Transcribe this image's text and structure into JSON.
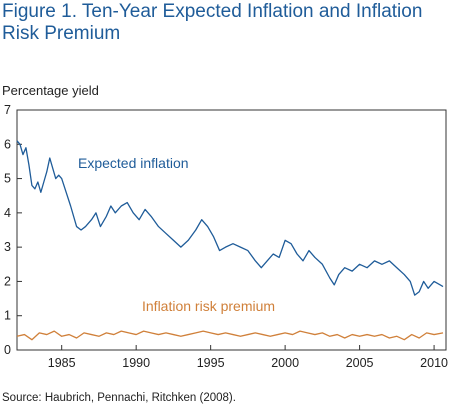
{
  "chart_data": {
    "type": "line",
    "title": "Figure 1. Ten-Year Expected Inflation and Inflation Risk Premium",
    "ylabel": "Percentage yield",
    "xlabel": "",
    "source": "Source: Haubrich, Pennachi, Ritchken (2008).",
    "xlim": [
      1982,
      2010.8
    ],
    "ylim": [
      0,
      7
    ],
    "x_ticks": [
      1985,
      1990,
      1995,
      2000,
      2005,
      2010
    ],
    "y_ticks": [
      0,
      1,
      2,
      3,
      4,
      5,
      6,
      7
    ],
    "grid": false,
    "series": [
      {
        "name": "Expected inflation",
        "color": "#1f5c99",
        "x": [
          1982.0,
          1982.2,
          1982.4,
          1982.6,
          1982.8,
          1983.0,
          1983.2,
          1983.4,
          1983.6,
          1983.8,
          1984.0,
          1984.2,
          1984.4,
          1984.6,
          1984.8,
          1985.0,
          1985.3,
          1985.6,
          1986.0,
          1986.3,
          1986.6,
          1987.0,
          1987.3,
          1987.6,
          1988.0,
          1988.3,
          1988.6,
          1989.0,
          1989.4,
          1989.8,
          1990.2,
          1990.6,
          1991.0,
          1991.5,
          1992.0,
          1992.5,
          1993.0,
          1993.5,
          1994.0,
          1994.4,
          1994.8,
          1995.2,
          1995.6,
          1996.0,
          1996.5,
          1997.0,
          1997.5,
          1998.0,
          1998.4,
          1998.8,
          1999.2,
          1999.6,
          2000.0,
          2000.4,
          2000.8,
          2001.2,
          2001.6,
          2002.0,
          2002.5,
          2003.0,
          2003.3,
          2003.6,
          2004.0,
          2004.5,
          2005.0,
          2005.5,
          2006.0,
          2006.5,
          2007.0,
          2007.5,
          2008.0,
          2008.4,
          2008.7,
          2009.0,
          2009.3,
          2009.6,
          2010.0,
          2010.4,
          2010.6
        ],
        "values": [
          6.1,
          6.0,
          5.7,
          5.9,
          5.4,
          4.8,
          4.7,
          4.9,
          4.6,
          4.9,
          5.2,
          5.6,
          5.3,
          5.0,
          5.1,
          5.0,
          4.6,
          4.2,
          3.6,
          3.5,
          3.6,
          3.8,
          4.0,
          3.6,
          3.9,
          4.2,
          4.0,
          4.2,
          4.3,
          4.0,
          3.8,
          4.1,
          3.9,
          3.6,
          3.4,
          3.2,
          3.0,
          3.2,
          3.5,
          3.8,
          3.6,
          3.3,
          2.9,
          3.0,
          3.1,
          3.0,
          2.9,
          2.6,
          2.4,
          2.6,
          2.8,
          2.7,
          3.2,
          3.1,
          2.8,
          2.6,
          2.9,
          2.7,
          2.5,
          2.1,
          1.9,
          2.2,
          2.4,
          2.3,
          2.5,
          2.4,
          2.6,
          2.5,
          2.6,
          2.4,
          2.2,
          2.0,
          1.6,
          1.7,
          2.0,
          1.8,
          2.0,
          1.9,
          1.85
        ]
      },
      {
        "name": "Inflation risk premium",
        "color": "#d0803a",
        "x": [
          1982.0,
          1982.5,
          1983.0,
          1983.5,
          1984.0,
          1984.5,
          1985.0,
          1985.5,
          1986.0,
          1986.5,
          1987.0,
          1987.5,
          1988.0,
          1988.5,
          1989.0,
          1989.5,
          1990.0,
          1990.5,
          1991.0,
          1991.5,
          1992.0,
          1992.5,
          1993.0,
          1993.5,
          1994.0,
          1994.5,
          1995.0,
          1995.5,
          1996.0,
          1996.5,
          1997.0,
          1997.5,
          1998.0,
          1998.5,
          1999.0,
          1999.5,
          2000.0,
          2000.5,
          2001.0,
          2001.5,
          2002.0,
          2002.5,
          2003.0,
          2003.5,
          2004.0,
          2004.5,
          2005.0,
          2005.5,
          2006.0,
          2006.5,
          2007.0,
          2007.5,
          2008.0,
          2008.5,
          2009.0,
          2009.5,
          2010.0,
          2010.6
        ],
        "values": [
          0.4,
          0.45,
          0.3,
          0.5,
          0.45,
          0.55,
          0.4,
          0.45,
          0.35,
          0.5,
          0.45,
          0.4,
          0.5,
          0.45,
          0.55,
          0.5,
          0.45,
          0.55,
          0.5,
          0.45,
          0.5,
          0.45,
          0.4,
          0.45,
          0.5,
          0.55,
          0.5,
          0.45,
          0.5,
          0.45,
          0.4,
          0.45,
          0.5,
          0.45,
          0.4,
          0.45,
          0.5,
          0.45,
          0.55,
          0.5,
          0.45,
          0.5,
          0.4,
          0.45,
          0.35,
          0.45,
          0.4,
          0.45,
          0.4,
          0.45,
          0.35,
          0.4,
          0.3,
          0.45,
          0.35,
          0.5,
          0.45,
          0.5
        ]
      }
    ]
  }
}
